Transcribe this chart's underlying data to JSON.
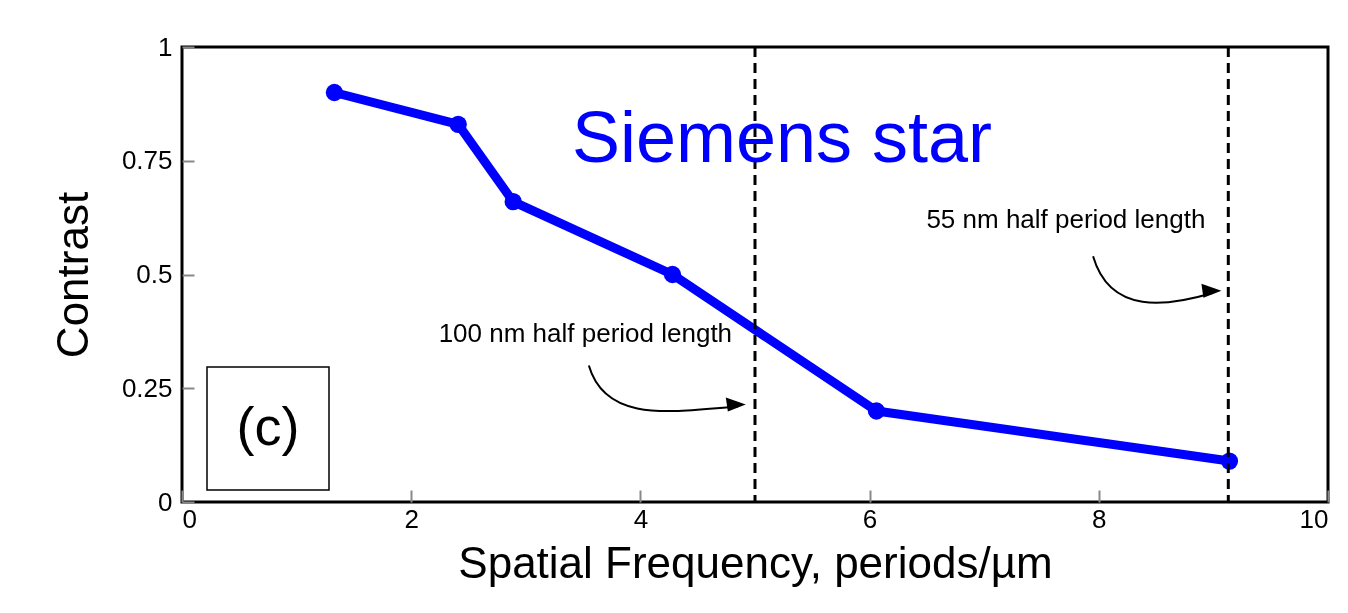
{
  "chart_data": {
    "type": "line",
    "xlabel": "Spatial Frequency, periods/µm",
    "ylabel": "Contrast",
    "x": [
      1.33,
      2.41,
      2.89,
      4.28,
      6.06,
      9.14
    ],
    "series": [
      {
        "color": "#0000ff",
        "values": [
          0.9,
          0.83,
          0.66,
          0.5,
          0.2,
          0.09
        ]
      }
    ],
    "xlim": [
      0,
      10
    ],
    "xticks": [
      0,
      2,
      4,
      6,
      8,
      10
    ],
    "ylim": [
      0,
      1
    ],
    "yticks": [
      0,
      0.25,
      0.5,
      0.75,
      1
    ],
    "grid": false,
    "marker": "circle",
    "line_style": "solid",
    "ref_lines": [
      {
        "axis": "x",
        "value": 5,
        "label": "100 nm half period length",
        "line_style": "dashed",
        "color": "#000000"
      },
      {
        "axis": "x",
        "value": 9.13,
        "label": "55 nm half period length",
        "line_style": "dashed",
        "color": "#000000"
      }
    ],
    "annotations": [
      "Siemens star",
      "(c)"
    ]
  }
}
